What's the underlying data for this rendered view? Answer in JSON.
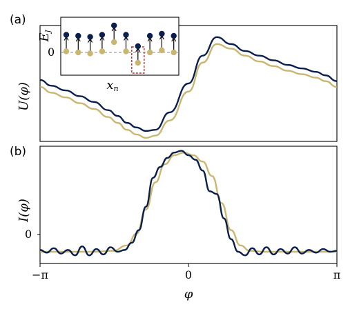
{
  "colors": {
    "navy": "#0b1f4d",
    "gold": "#c9b670",
    "box": "#b03030",
    "dash": "#888888"
  },
  "chart_data": [
    {
      "type": "line",
      "panel_label": "(a)",
      "ylabel": "U(φ)",
      "xlim": [
        -3.1416,
        3.1416
      ],
      "ylim": [
        0,
        1
      ],
      "series": [
        {
          "color": "navy",
          "x": [
            -3.14,
            -2.9,
            -2.6,
            -2.3,
            -2.0,
            -1.7,
            -1.5,
            -1.3,
            -1.1,
            -0.9,
            -0.7,
            -0.4,
            0.0,
            0.3,
            0.6,
            0.9,
            1.2,
            1.5,
            1.8,
            2.1,
            2.4,
            2.7,
            2.9,
            3.14
          ],
          "y": [
            0.53,
            0.48,
            0.44,
            0.39,
            0.34,
            0.27,
            0.22,
            0.16,
            0.12,
            0.09,
            0.1,
            0.25,
            0.5,
            0.74,
            0.9,
            0.84,
            0.78,
            0.74,
            0.7,
            0.66,
            0.63,
            0.6,
            0.57,
            0.52
          ]
        },
        {
          "color": "gold",
          "x": [
            -3.14,
            -2.9,
            -2.6,
            -2.3,
            -2.0,
            -1.7,
            -1.5,
            -1.3,
            -1.1,
            -0.9,
            -0.7,
            -0.4,
            0.0,
            0.3,
            0.6,
            0.9,
            1.2,
            1.5,
            1.8,
            2.1,
            2.4,
            2.7,
            2.9,
            3.14
          ],
          "y": [
            0.47,
            0.42,
            0.38,
            0.33,
            0.28,
            0.21,
            0.16,
            0.1,
            0.06,
            0.03,
            0.05,
            0.18,
            0.43,
            0.68,
            0.84,
            0.8,
            0.74,
            0.69,
            0.65,
            0.61,
            0.58,
            0.55,
            0.52,
            0.47
          ]
        }
      ]
    },
    {
      "type": "line",
      "panel_label": "(b)",
      "ylabel": "I(φ)",
      "xlabel": "φ",
      "xlim": [
        -3.1416,
        3.1416
      ],
      "ylim": [
        -0.25,
        1.05
      ],
      "xticks": [
        "−π",
        "0",
        "π"
      ],
      "yticks": [
        "0"
      ],
      "series": [
        {
          "color": "gold",
          "x": [
            -3.14,
            -2.8,
            -2.4,
            -2.0,
            -1.6,
            -1.3,
            -1.1,
            -0.9,
            -0.7,
            -0.5,
            -0.3,
            -0.1,
            0.1,
            0.3,
            0.5,
            0.7,
            0.9,
            1.1,
            1.3,
            1.6,
            2.0,
            2.4,
            2.8,
            3.14
          ],
          "y": [
            -0.12,
            -0.12,
            -0.12,
            -0.12,
            -0.11,
            -0.05,
            0.08,
            0.35,
            0.65,
            0.85,
            0.95,
            0.98,
            0.95,
            0.88,
            0.72,
            0.42,
            0.12,
            -0.05,
            -0.11,
            -0.12,
            -0.12,
            -0.12,
            -0.12,
            -0.12
          ]
        },
        {
          "color": "navy",
          "x": [
            -3.14,
            -3.0,
            -2.85,
            -2.7,
            -2.55,
            -2.4,
            -2.25,
            -2.1,
            -1.95,
            -1.8,
            -1.65,
            -1.5,
            -1.35,
            -1.2,
            -1.05,
            -0.9,
            -0.75,
            -0.6,
            -0.45,
            -0.3,
            -0.15,
            0.0,
            0.15,
            0.3,
            0.45,
            0.6,
            0.75,
            0.9,
            1.05,
            1.2,
            1.35,
            1.5,
            1.65,
            1.8,
            1.95,
            2.1,
            2.25,
            2.4,
            2.55,
            2.7,
            2.85,
            3.0,
            3.14
          ],
          "y": [
            -0.1,
            -0.13,
            -0.08,
            -0.14,
            -0.1,
            -0.16,
            -0.06,
            -0.16,
            -0.09,
            -0.15,
            -0.07,
            -0.12,
            -0.1,
            -0.02,
            0.12,
            0.38,
            0.7,
            0.82,
            0.92,
            0.98,
            1.0,
            0.95,
            0.9,
            0.78,
            0.55,
            0.52,
            0.25,
            0.02,
            -0.12,
            -0.16,
            -0.08,
            -0.15,
            -0.07,
            -0.15,
            -0.09,
            -0.14,
            -0.07,
            -0.14,
            -0.1,
            -0.13,
            -0.09,
            -0.12,
            -0.11
          ]
        }
      ]
    }
  ],
  "inset": {
    "ylabel": "E_J",
    "ytick": "0",
    "xlabel": "x_n",
    "sites": [
      {
        "navy": 0.55,
        "gold": -0.05
      },
      {
        "navy": 0.5,
        "gold": 0.0
      },
      {
        "navy": 0.45,
        "gold": -0.05
      },
      {
        "navy": 0.55,
        "gold": 0.0
      },
      {
        "navy": 1.0,
        "gold": 0.45
      },
      {
        "navy": 0.55,
        "gold": -0.05
      },
      {
        "navy": 0.0,
        "gold": -0.55
      },
      {
        "navy": 0.5,
        "gold": 0.0
      },
      {
        "navy": 0.6,
        "gold": 0.05
      },
      {
        "navy": 0.5,
        "gold": 0.0
      }
    ],
    "highlight_index": 6
  }
}
